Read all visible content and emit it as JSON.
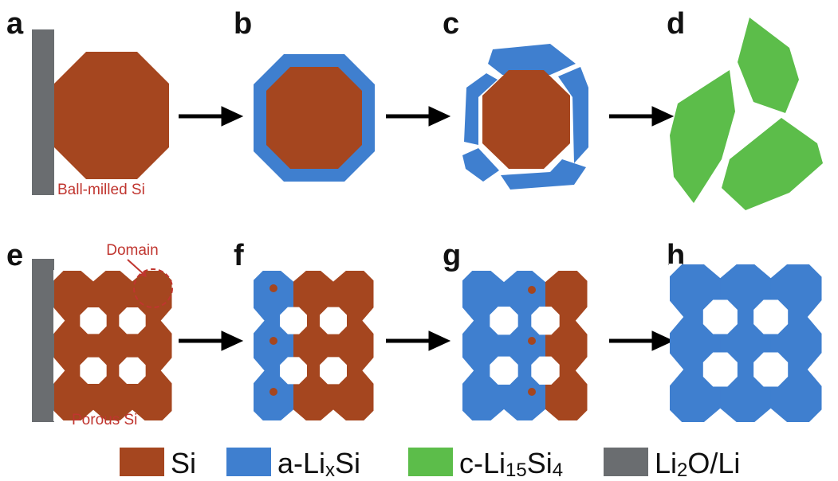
{
  "panels": {
    "a": "a",
    "b": "b",
    "c": "c",
    "d": "d",
    "e": "e",
    "f": "f",
    "g": "g",
    "h": "h"
  },
  "annotations": {
    "ball_milled": "Ball-milled Si",
    "domain": "Domain",
    "porous": "Porous Si"
  },
  "legend": [
    {
      "color": "#a5461f",
      "parts": [
        {
          "text": "Si"
        }
      ]
    },
    {
      "color": "#3f7fcf",
      "parts": [
        {
          "text": "a-Li"
        },
        {
          "text": "x",
          "sub": true
        },
        {
          "text": "Si"
        }
      ]
    },
    {
      "color": "#5cbd4a",
      "parts": [
        {
          "text": "c-Li"
        },
        {
          "text": "15",
          "sub": true
        },
        {
          "text": "Si"
        },
        {
          "text": "4",
          "sub": true
        }
      ]
    },
    {
      "color": "#6a6d70",
      "parts": [
        {
          "text": "Li"
        },
        {
          "text": "2",
          "sub": true
        },
        {
          "text": "O/Li"
        }
      ]
    }
  ]
}
